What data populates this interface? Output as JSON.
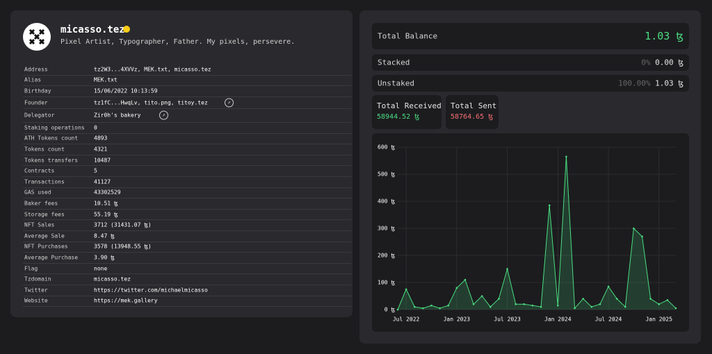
{
  "profile": {
    "name": "micasso.tez",
    "bio": "Pixel Artist, Typographer, Father. My pixels, persevere."
  },
  "details": [
    [
      "Address",
      "tz2W3...4XVVz, MEK.txt, micasso.tez"
    ],
    [
      "Alias",
      "MEK.txt"
    ],
    [
      "Birthday",
      "15/06/2022 10:13:59"
    ],
    [
      "Founder",
      "tz1fC...HwqLv, tito.png, titoy.tez"
    ],
    [
      "Delegator",
      "Zir0h's bakery"
    ],
    [
      "Staking operations",
      "0"
    ],
    [
      "ATH Tokens count",
      "4893"
    ],
    [
      "Tokens count",
      "4321"
    ],
    [
      "Tokens transfers",
      "10487"
    ],
    [
      "Contracts",
      "5"
    ],
    [
      "Transactions",
      "41127"
    ],
    [
      "GAS used",
      "43302529"
    ],
    [
      "Baker fees",
      "10.51 ꜩ"
    ],
    [
      "Storage fees",
      "55.19 ꜩ"
    ],
    [
      "NFT Sales",
      "3712 (31431.07 ꜩ)"
    ],
    [
      "Average Sale",
      "8.47 ꜩ"
    ],
    [
      "NFT Purchases",
      "3578 (13948.55 ꜩ)"
    ],
    [
      "Average Purchase",
      "3.90 ꜩ"
    ],
    [
      "Flag",
      "none"
    ],
    [
      "Tzdomain",
      "micasso.tez"
    ],
    [
      "Twitter",
      "https://twitter.com/michaelmicasso"
    ],
    [
      "Website",
      "https://mek.gallery"
    ]
  ],
  "balance": {
    "total": {
      "label": "Total Balance",
      "value": "1.03 ꜩ"
    },
    "staked": {
      "label": "Stacked",
      "percent": "0%",
      "value": "0.00 ꜩ"
    },
    "unstaked": {
      "label": "Unstaked",
      "percent": "100.00%",
      "value": "1.03 ꜩ"
    },
    "received": {
      "label": "Total Received",
      "value": "58944.52 ꜩ"
    },
    "sent": {
      "label": "Total Sent",
      "value": "58764.65 ꜩ"
    }
  },
  "chart_data": {
    "type": "line",
    "x": [
      "2022-06",
      "2022-07",
      "2022-08",
      "2022-09",
      "2022-10",
      "2022-11",
      "2022-12",
      "2023-01",
      "2023-02",
      "2023-03",
      "2023-04",
      "2023-05",
      "2023-06",
      "2023-07",
      "2023-08",
      "2023-09",
      "2023-10",
      "2023-11",
      "2023-12",
      "2024-01",
      "2024-02",
      "2024-03",
      "2024-04",
      "2024-05",
      "2024-06",
      "2024-07",
      "2024-08",
      "2024-09",
      "2024-10",
      "2024-11",
      "2024-12",
      "2025-01",
      "2025-02",
      "2025-03"
    ],
    "series": [
      {
        "color": "#4ade80",
        "values": [
          0,
          75,
          10,
          5,
          15,
          5,
          15,
          80,
          110,
          20,
          50,
          10,
          40,
          150,
          20,
          20,
          15,
          10,
          385,
          15,
          565,
          5,
          40,
          10,
          20,
          85,
          40,
          10,
          300,
          270,
          40,
          20,
          35,
          5
        ]
      }
    ],
    "xlim": [
      "2022-06",
      "2025-03"
    ],
    "xticks": [
      {
        "value": "2022-07",
        "label": "Jul 2022"
      },
      {
        "value": "2023-01",
        "label": "Jan 2023"
      },
      {
        "value": "2023-07",
        "label": "Jul 2023"
      },
      {
        "value": "2024-01",
        "label": "Jan 2024"
      },
      {
        "value": "2024-07",
        "label": "Jul 2024"
      },
      {
        "value": "2025-01",
        "label": "Jan 2025"
      }
    ],
    "ylim": [
      0,
      600
    ],
    "yticks": [
      {
        "value": 0,
        "label": "0 ꜩ"
      },
      {
        "value": 100,
        "label": "100 ꜩ"
      },
      {
        "value": 200,
        "label": "200 ꜩ"
      },
      {
        "value": 300,
        "label": "300 ꜩ"
      },
      {
        "value": 400,
        "label": "400 ꜩ"
      },
      {
        "value": 500,
        "label": "500 ꜩ"
      },
      {
        "value": 600,
        "label": "600 ꜩ"
      }
    ],
    "grid": true
  }
}
